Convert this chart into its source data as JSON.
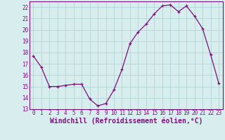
{
  "hours": [
    0,
    1,
    2,
    3,
    4,
    5,
    6,
    7,
    8,
    9,
    10,
    11,
    12,
    13,
    14,
    15,
    16,
    17,
    18,
    19,
    20,
    21,
    22,
    23
  ],
  "values": [
    17.7,
    16.7,
    15.0,
    15.0,
    15.1,
    15.2,
    15.2,
    13.9,
    13.3,
    13.5,
    14.7,
    16.5,
    18.8,
    19.8,
    20.5,
    21.4,
    22.1,
    22.2,
    21.6,
    22.1,
    21.2,
    20.1,
    17.8,
    15.3
  ],
  "line_color": "#7b0f7b",
  "marker": "+",
  "marker_size": 3,
  "background_color": "#d8eeee",
  "grid_color": "#b0d4d4",
  "xlabel": "Windchill (Refroidissement éolien,°C)",
  "xlabel_color": "#7b0f7b",
  "ylim": [
    13,
    22.5
  ],
  "yticks": [
    13,
    14,
    15,
    16,
    17,
    18,
    19,
    20,
    21,
    22
  ],
  "xticks": [
    0,
    1,
    2,
    3,
    4,
    5,
    6,
    7,
    8,
    9,
    10,
    11,
    12,
    13,
    14,
    15,
    16,
    17,
    18,
    19,
    20,
    21,
    22,
    23
  ],
  "tick_color": "#7b0f7b",
  "tick_fontsize": 5.5,
  "xlabel_fontsize": 7.0,
  "spine_color": "#7b0f7b"
}
